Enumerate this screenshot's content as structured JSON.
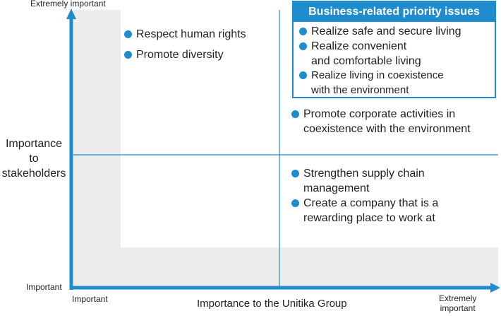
{
  "y_axis": {
    "top_label": "Extremely important",
    "bottom_label": "Important",
    "title": [
      "Importance",
      "to",
      "stakeholders"
    ]
  },
  "x_axis": {
    "left_label": "Important",
    "right_label": [
      "Extremely",
      "important"
    ],
    "title": "Importance to the Unitika Group"
  },
  "quadrant_top_left": {
    "items": [
      "Respect human rights",
      "Promote diversity"
    ]
  },
  "priority_box": {
    "title": "Business-related priority issues",
    "items": [
      [
        "Realize safe and secure living"
      ],
      [
        "Realize convenient",
        "and comfortable living"
      ],
      [
        "Realize living in coexistence",
        "with the environment"
      ]
    ]
  },
  "quadrant_top_right": {
    "items": [
      [
        "Promote corporate activities in",
        "coexistence with the environment"
      ]
    ]
  },
  "quadrant_bottom_right": {
    "items": [
      [
        "Strengthen supply chain",
        "management"
      ],
      [
        "Create a company that is a",
        "rewarding place to work at"
      ]
    ]
  },
  "colors": {
    "accent": "#1e8ccd",
    "shade": "#ececed",
    "text": "#231f20"
  }
}
